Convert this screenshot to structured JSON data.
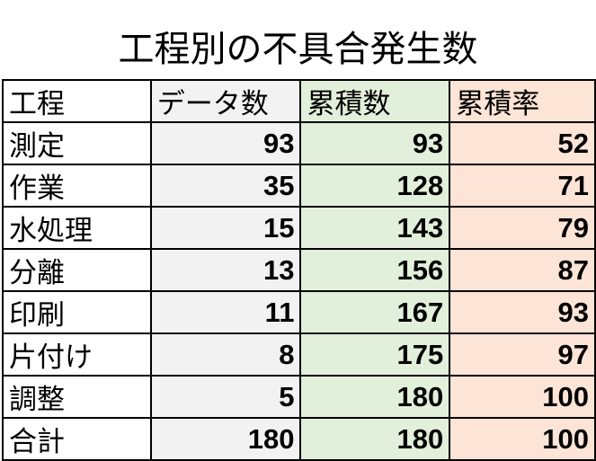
{
  "title": "工程別の不具合発生数",
  "colors": {
    "data_col": "#f2f2f2",
    "cumulative_col": "#e2efda",
    "rate_col": "#fce4d6"
  },
  "headers": [
    "工程",
    "データ数",
    "累積数",
    "累積率"
  ],
  "rows": [
    [
      "測定",
      "93",
      "93",
      "52"
    ],
    [
      "作業",
      "35",
      "128",
      "71"
    ],
    [
      "水処理",
      "15",
      "143",
      "79"
    ],
    [
      "分離",
      "13",
      "156",
      "87"
    ],
    [
      "印刷",
      "11",
      "167",
      "93"
    ],
    [
      "片付け",
      "8",
      "175",
      "97"
    ],
    [
      "調整",
      "5",
      "180",
      "100"
    ],
    [
      "合計",
      "180",
      "180",
      "100"
    ]
  ]
}
